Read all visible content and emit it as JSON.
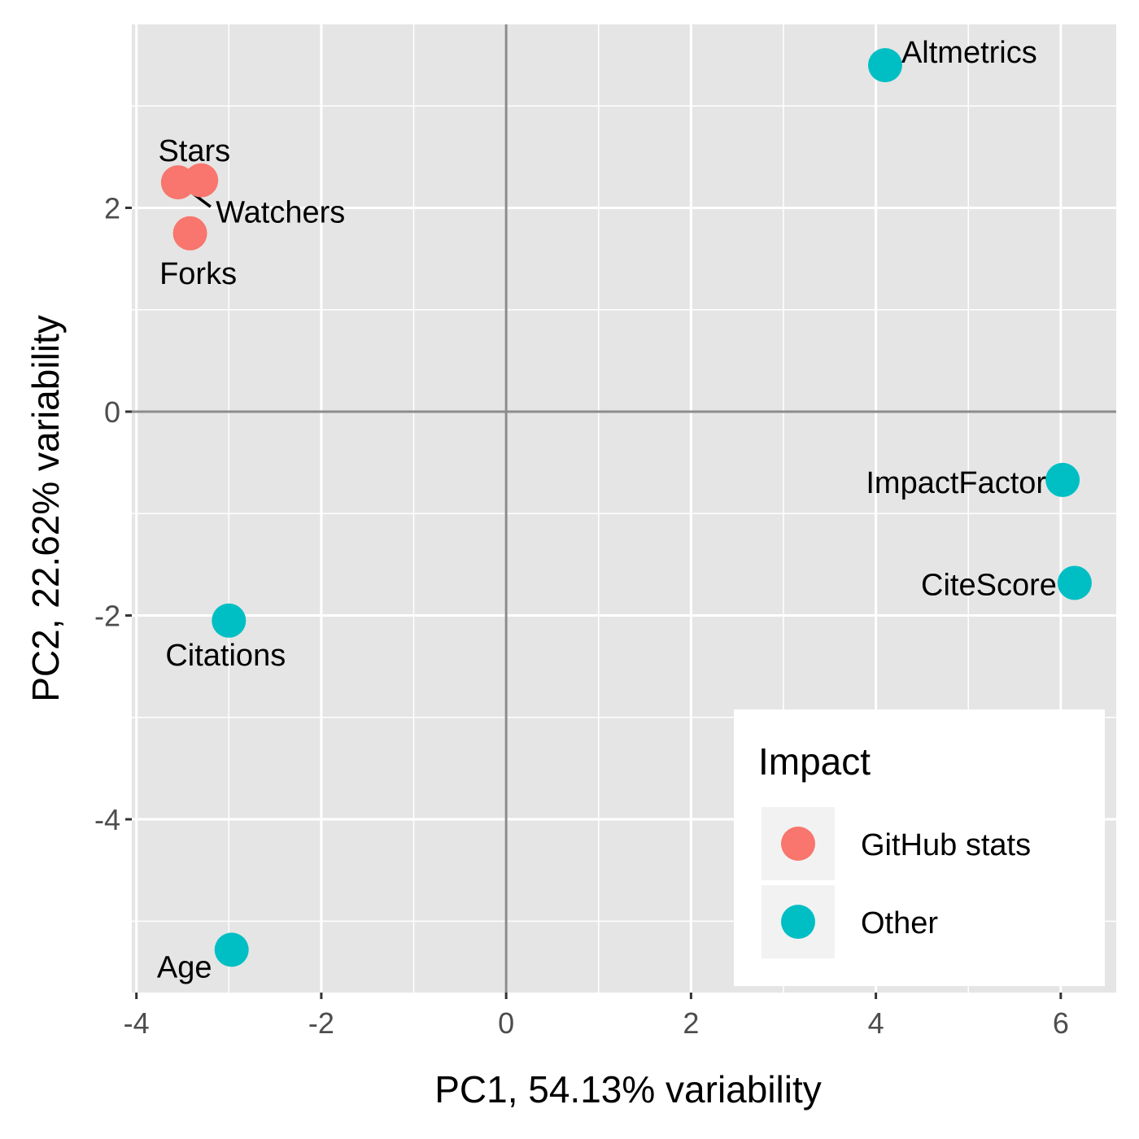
{
  "chart_data": {
    "type": "scatter",
    "title": "",
    "xlabel": "PC1, 54.13% variability",
    "ylabel": "PC2, 22.62% variability",
    "xlim": [
      -4.05,
      6.6
    ],
    "ylim": [
      -5.7,
      3.8
    ],
    "x_ticks": [
      -4,
      -2,
      0,
      2,
      4,
      6
    ],
    "y_ticks": [
      -4,
      -2,
      0,
      2
    ],
    "grid": true,
    "reference_lines": {
      "x": 0,
      "y": 0
    },
    "legend": {
      "title": "Impact",
      "position": "bottom-right inside",
      "entries": [
        {
          "label": "GitHub stats",
          "color": "#F8766D"
        },
        {
          "label": "Other",
          "color": "#00BFC4"
        }
      ]
    },
    "points": [
      {
        "label": "Stars",
        "x": -3.55,
        "y": 2.25,
        "group": "GitHub stats"
      },
      {
        "label": "Watchers",
        "x": -3.3,
        "y": 2.27,
        "group": "GitHub stats"
      },
      {
        "label": "Forks",
        "x": -3.42,
        "y": 1.75,
        "group": "GitHub stats"
      },
      {
        "label": "Altmetrics",
        "x": 4.1,
        "y": 3.4,
        "group": "Other"
      },
      {
        "label": "ImpactFactor",
        "x": 6.02,
        "y": -0.67,
        "group": "Other"
      },
      {
        "label": "CiteScore",
        "x": 6.15,
        "y": -1.68,
        "group": "Other"
      },
      {
        "label": "Citations",
        "x": -3.0,
        "y": -2.05,
        "group": "Other"
      },
      {
        "label": "Age",
        "x": -2.97,
        "y": -5.28,
        "group": "Other"
      }
    ]
  }
}
